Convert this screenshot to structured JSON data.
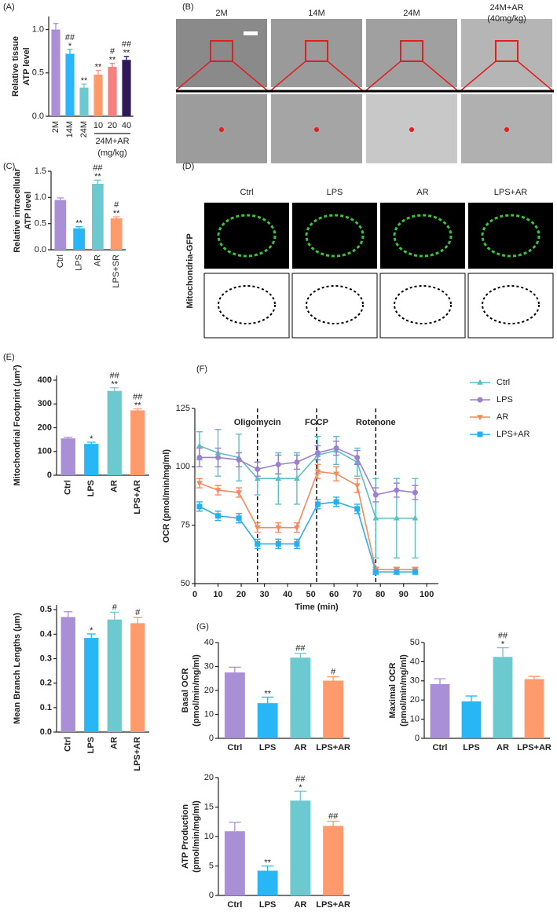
{
  "chart_data": [
    {
      "type": "bar",
      "panel": "(A)",
      "ylabel": [
        "Relative tissue",
        "ATP level"
      ],
      "categories": [
        "2M",
        "14M",
        "24M",
        "10",
        "20",
        "40"
      ],
      "group_label": "24M+AR",
      "group_unit": "(mg/kg)",
      "values": [
        1.0,
        0.72,
        0.33,
        0.48,
        0.57,
        0.65
      ],
      "errors": [
        0.07,
        0.05,
        0.04,
        0.05,
        0.04,
        0.04
      ],
      "colors": [
        "#a98fd6",
        "#29b6f6",
        "#6cc9cf",
        "#ff9a6c",
        "#f77f7f",
        "#2e1a5a"
      ],
      "stars": [
        null,
        "*",
        "**",
        "**",
        "**",
        "**"
      ],
      "hashes": [
        null,
        "##",
        null,
        null,
        "#",
        "##"
      ],
      "ylim": [
        0,
        1.15
      ],
      "yticks": [
        {
          "value": 0,
          "label": "0.0"
        },
        0.5,
        {
          "value": 1,
          "label": "1.0"
        }
      ]
    },
    {
      "type": "bar",
      "panel": "(C)",
      "ylabel": [
        "Relative intracellular",
        "ATP level"
      ],
      "categories": [
        "Ctrl",
        "LPS",
        "AR",
        "LPS+SR"
      ],
      "values": [
        0.95,
        0.41,
        1.26,
        0.6
      ],
      "errors": [
        0.04,
        0.03,
        0.07,
        0.03
      ],
      "colors": [
        "#a98fd6",
        "#29b6f6",
        "#6cc9cf",
        "#ff9a6c"
      ],
      "stars": [
        null,
        "**",
        "**",
        "**"
      ],
      "hashes": [
        null,
        null,
        "##",
        "#"
      ],
      "ylim": [
        0,
        1.5
      ],
      "yticks": [
        {
          "value": 0,
          "label": "0.0"
        },
        0.5,
        {
          "value": 1,
          "label": "1.0"
        },
        1.5
      ]
    },
    {
      "type": "bar",
      "panel": "(E)",
      "ylabel": [
        "Mitochondrial Footprint (μm²)"
      ],
      "categories": [
        "Ctrl",
        "LPS",
        "AR",
        "LPS+AR"
      ],
      "values": [
        155,
        132,
        355,
        273
      ],
      "errors": [
        5,
        7,
        13,
        6
      ],
      "colors": [
        "#a98fd6",
        "#29b6f6",
        "#6cc9cf",
        "#ff9a6c"
      ],
      "stars": [
        null,
        "*",
        "**",
        "**"
      ],
      "hashes": [
        null,
        null,
        "##",
        "##"
      ],
      "ylim": [
        0,
        420
      ],
      "yticks": [
        0,
        100,
        200,
        300,
        400
      ]
    },
    {
      "type": "bar",
      "ylabel": [
        "Mean Branch Lengths (μm)"
      ],
      "categories": [
        "Ctrl",
        "LPS",
        "AR",
        "LPS+AR"
      ],
      "values": [
        0.47,
        0.385,
        0.46,
        0.445
      ],
      "errors": [
        0.022,
        0.016,
        0.03,
        0.023
      ],
      "colors": [
        "#a98fd6",
        "#29b6f6",
        "#6cc9cf",
        "#ff9a6c"
      ],
      "stars": [
        null,
        "*",
        null,
        null
      ],
      "hashes": [
        null,
        null,
        "#",
        "#"
      ],
      "ylim": [
        0,
        0.52
      ],
      "yticks": [
        {
          "value": 0,
          "label": "0.0"
        },
        0.1,
        0.2,
        0.3,
        0.4,
        0.5
      ]
    },
    {
      "type": "line",
      "panel": "(F)",
      "ylabel": [
        "OCR (pmol/min/mg/ml)"
      ],
      "xlabel": "Time (min)",
      "x": [
        2,
        10,
        19,
        27,
        36,
        44,
        53,
        61,
        70,
        78,
        87,
        95
      ],
      "xlim": [
        0,
        105
      ],
      "xticks": [
        0,
        10,
        20,
        30,
        40,
        50,
        60,
        70,
        80,
        90,
        100
      ],
      "ylim": [
        50,
        125
      ],
      "yticks": [
        50,
        75,
        100,
        125
      ],
      "annotations": [
        {
          "x": 27,
          "text": "Oligomycin"
        },
        {
          "x": 52.5,
          "text": "FCCP"
        },
        {
          "x": 78,
          "text": "Rotenone"
        }
      ],
      "series": [
        {
          "name": "Ctrl",
          "color": "#5cbfc6",
          "marker": "^",
          "values": [
            109,
            106,
            104,
            95,
            95,
            95,
            105,
            107,
            102,
            78,
            78,
            78
          ],
          "errors": [
            6,
            10,
            10,
            7,
            11,
            11,
            8,
            6,
            6,
            17,
            17,
            17
          ]
        },
        {
          "name": "LPS",
          "color": "#9b7fd0",
          "marker": "o",
          "values": [
            104,
            104,
            103,
            99,
            101,
            102,
            106,
            108,
            104,
            88,
            90,
            89
          ],
          "errors": [
            4,
            4,
            3,
            3,
            4,
            3,
            3,
            3,
            3,
            3,
            3,
            3
          ]
        },
        {
          "name": "AR",
          "color": "#f58a5f",
          "marker": "v",
          "values": [
            93,
            90,
            89,
            74,
            74,
            74,
            98,
            97,
            92,
            56,
            56,
            56
          ],
          "errors": [
            2,
            2,
            2,
            2,
            2,
            2,
            3,
            3,
            3,
            1,
            1,
            1
          ]
        },
        {
          "name": "LPS+AR",
          "color": "#29aef0",
          "marker": "s",
          "values": [
            83,
            79,
            78,
            67,
            67,
            67,
            84,
            85,
            82,
            55,
            55,
            55
          ],
          "errors": [
            2,
            2,
            2,
            2,
            2,
            2,
            2,
            2,
            2,
            1,
            1,
            1
          ]
        }
      ]
    },
    {
      "type": "bar",
      "panel": "(G)",
      "ylabel": [
        "Basal OCR",
        "(pmol/min/mg/ml)"
      ],
      "categories": [
        "Ctrl",
        "LPS",
        "AR",
        "LPS+AR"
      ],
      "values": [
        27.5,
        14.7,
        33.7,
        24.1
      ],
      "errors": [
        2.2,
        2.5,
        1.8,
        1.6
      ],
      "colors": [
        "#a98fd6",
        "#29b6f6",
        "#6cc9cf",
        "#ff9a6c"
      ],
      "stars": [
        null,
        "**",
        null,
        null
      ],
      "hashes": [
        null,
        null,
        "##",
        "#"
      ],
      "ylim": [
        0,
        40
      ],
      "yticks": [
        0,
        10,
        20,
        30,
        40
      ]
    },
    {
      "type": "bar",
      "ylabel": [
        "Maximal OCR",
        "(pmol/min/mg/ml)"
      ],
      "categories": [
        "Ctrl",
        "LPS",
        "AR",
        "LPS+AR"
      ],
      "values": [
        28.3,
        19.3,
        42.5,
        30.9
      ],
      "errors": [
        2.8,
        2.8,
        4.8,
        1.4
      ],
      "colors": [
        "#a98fd6",
        "#29b6f6",
        "#6cc9cf",
        "#ff9a6c"
      ],
      "stars": [
        null,
        null,
        "*",
        null
      ],
      "hashes": [
        null,
        null,
        "##",
        null
      ],
      "ylim": [
        0,
        50
      ],
      "yticks": [
        0,
        10,
        20,
        30,
        40,
        50
      ]
    },
    {
      "type": "bar",
      "ylabel": [
        "ATP Production",
        "(pmol/min/mg/ml)"
      ],
      "categories": [
        "Ctrl",
        "LPS",
        "AR",
        "LPS+AR"
      ],
      "values": [
        10.9,
        4.2,
        16.1,
        11.8
      ],
      "errors": [
        1.5,
        0.8,
        1.6,
        0.8
      ],
      "colors": [
        "#a98fd6",
        "#29b6f6",
        "#6cc9cf",
        "#ff9a6c"
      ],
      "stars": [
        null,
        "**",
        "*",
        null
      ],
      "hashes": [
        null,
        null,
        "##",
        "##"
      ],
      "ylim": [
        0,
        20
      ],
      "yticks": [
        0,
        5,
        10,
        15,
        20
      ]
    }
  ],
  "images": {
    "B": {
      "panel": "(B)",
      "columns": [
        "2M",
        "14M",
        "24M",
        "24M+AR"
      ],
      "column_note": "(40mg/kg)"
    },
    "D": {
      "panel": "(D)",
      "columns": [
        "Ctrl",
        "LPS",
        "AR",
        "LPS+AR"
      ],
      "row_label": "Mitochondria-GFP"
    }
  }
}
